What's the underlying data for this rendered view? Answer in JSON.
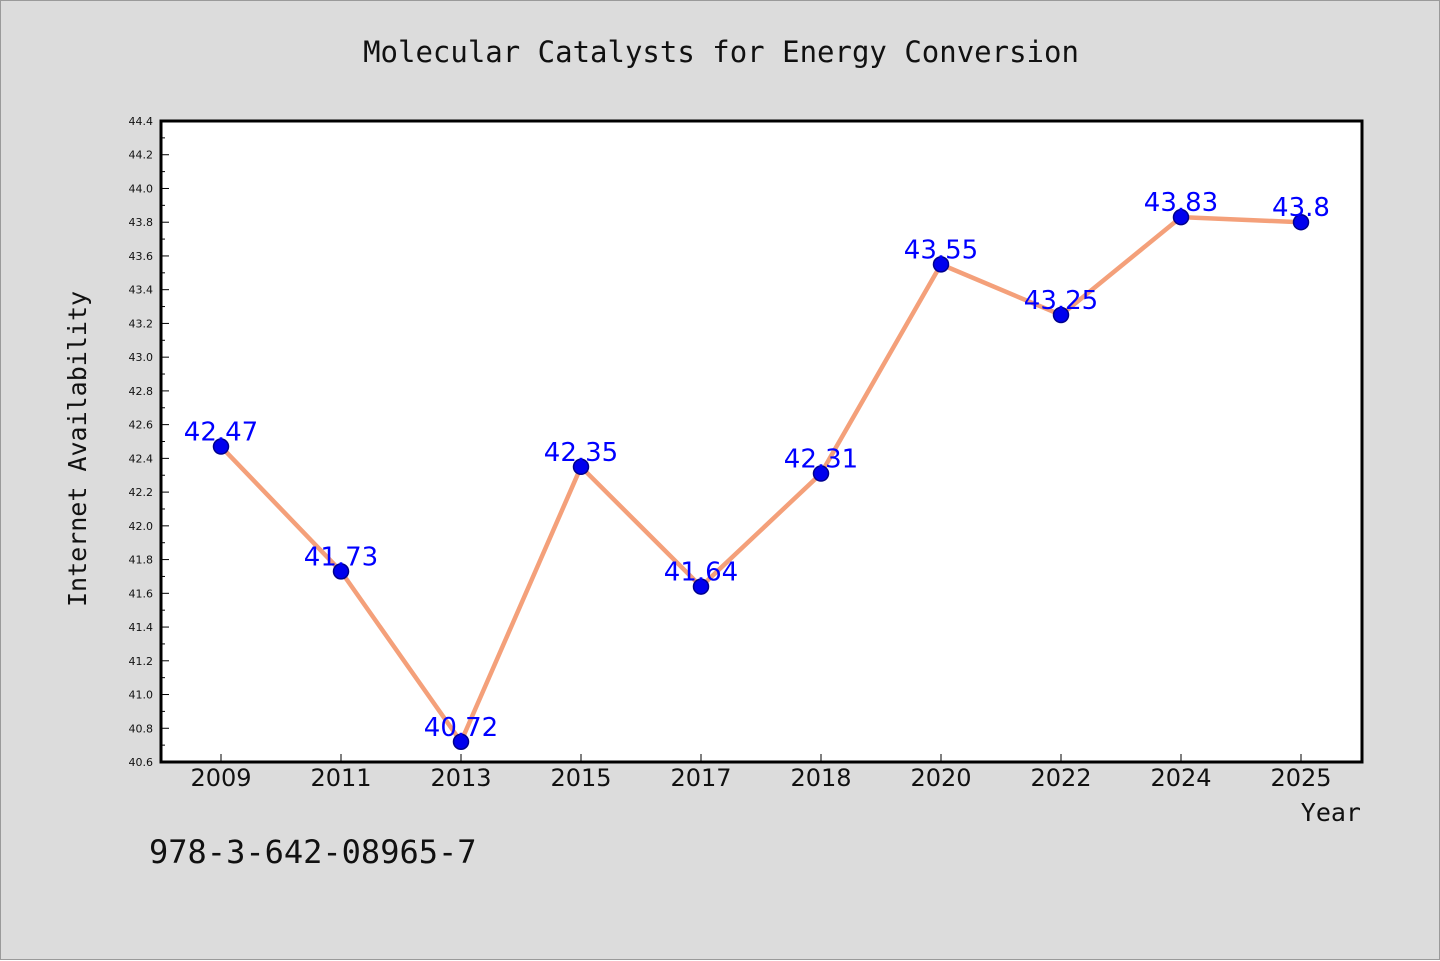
{
  "chart_data": {
    "type": "line",
    "title": "Molecular Catalysts for Energy Conversion",
    "xlabel": "Year",
    "ylabel": "Internet Availability",
    "categories": [
      "2009",
      "2011",
      "2013",
      "2015",
      "2017",
      "2018",
      "2020",
      "2022",
      "2024",
      "2025"
    ],
    "series": [
      {
        "values": [
          42.47,
          41.73,
          40.72,
          42.35,
          41.64,
          42.31,
          43.55,
          43.25,
          43.83,
          43.8
        ],
        "labels": [
          "42.47",
          "41.73",
          "40.72",
          "42.35",
          "41.64",
          "42.31",
          "43.55",
          "43.25",
          "43.83",
          "43.8"
        ]
      }
    ],
    "ylim": [
      40.6,
      44.4
    ],
    "yticks": [
      "40.6",
      "40.8",
      "41.0",
      "41.2",
      "41.4",
      "41.6",
      "41.8",
      "42.0",
      "42.2",
      "42.4",
      "42.6",
      "42.8",
      "43.0",
      "43.2",
      "43.4",
      "43.6",
      "43.8",
      "44.0",
      "44.2",
      "44.4"
    ],
    "grid": false,
    "colors": {
      "line": "#f4a07a",
      "marker_fill": "#0000ee",
      "marker_edge": "#00008b",
      "label": "#0000ff",
      "figure_bg": "#dcdcdc",
      "plot_bg": "#ffffff"
    }
  },
  "footer": {
    "code": "978-3-642-08965-7"
  }
}
